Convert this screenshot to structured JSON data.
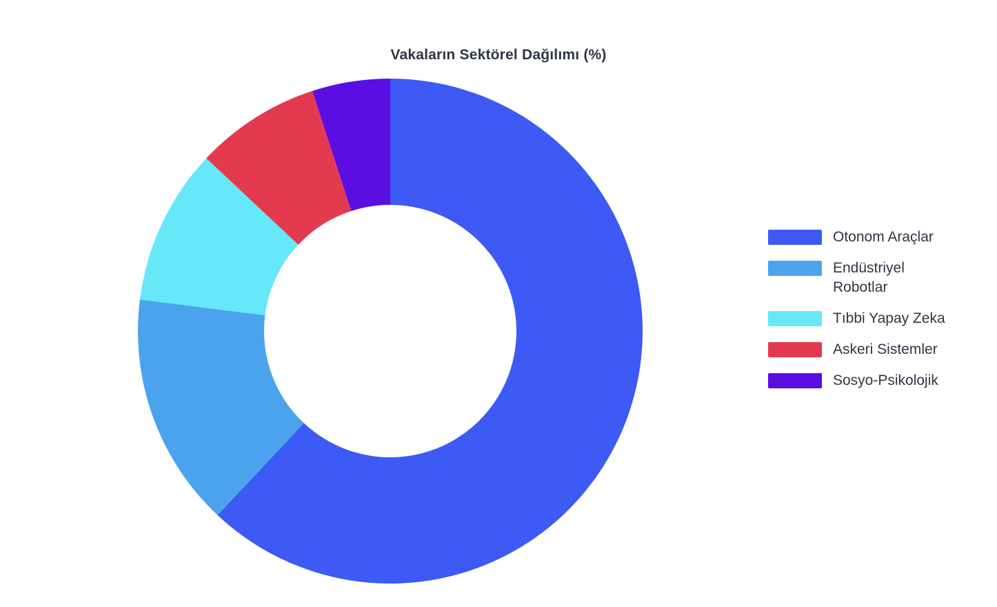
{
  "chart_data": {
    "type": "pie",
    "subtype": "donut",
    "title": "Vakaların Sektörel Dağılımı (%)",
    "unit": "%",
    "labels": [
      "Otonom Araçlar",
      "Endüstriyel Robotlar",
      "Tıbbi Yapay Zeka",
      "Askeri Sistemler",
      "Sosyo-Psikolojik"
    ],
    "values": [
      62,
      15,
      10,
      8,
      5
    ],
    "colors": [
      "#3D5AF5",
      "#4BA3EE",
      "#67E8F9",
      "#E43A50",
      "#5B0EE1"
    ],
    "hole": 0.5,
    "start_angle_deg": 0,
    "direction": "clockwise",
    "legend_position": "right",
    "background": "#ffffff"
  },
  "legend": {
    "entries": [
      "Otonom Araçlar",
      "Endüstriyel\nRobotlar",
      "Tıbbi Yapay Zeka",
      "Askeri Sistemler",
      "Sosyo-Psikolojik"
    ]
  }
}
